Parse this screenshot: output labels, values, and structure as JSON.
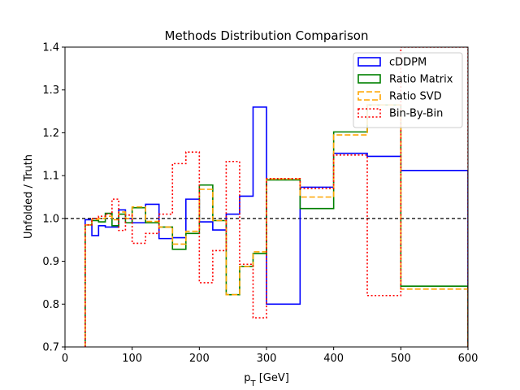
{
  "chart_data": {
    "type": "step",
    "title": "Methods Distribution Comparison",
    "xlabel": "p_T [GeV]",
    "ylabel": "Unfolded / Truth",
    "xlim": [
      0,
      600
    ],
    "ylim": [
      0.7,
      1.4
    ],
    "xticks": [
      0,
      100,
      200,
      300,
      400,
      500,
      600
    ],
    "yticks": [
      0.7,
      0.8,
      0.9,
      1.0,
      1.1,
      1.2,
      1.3,
      1.4
    ],
    "grid": false,
    "reference_line": {
      "y": 1.0,
      "style": "dashed",
      "color": "#000000"
    },
    "legend_position": "top-right",
    "bin_edges": [
      30,
      40,
      50,
      60,
      70,
      80,
      90,
      100,
      120,
      140,
      160,
      180,
      200,
      220,
      240,
      260,
      280,
      300,
      350,
      400,
      450,
      500,
      600
    ],
    "series": [
      {
        "name": "cDDPM",
        "color": "#0000ff",
        "style": "solid",
        "values": [
          0.997,
          0.96,
          0.983,
          0.98,
          0.98,
          1.02,
          1.0,
          0.99,
          1.033,
          0.953,
          0.955,
          1.045,
          0.992,
          0.973,
          1.01,
          1.052,
          1.26,
          0.8,
          1.073,
          1.152,
          1.145,
          1.112
        ]
      },
      {
        "name": "Ratio Matrix",
        "color": "#008000",
        "style": "solid",
        "values": [
          0.985,
          0.995,
          0.992,
          1.012,
          0.983,
          1.01,
          0.99,
          1.025,
          0.99,
          0.98,
          0.928,
          0.965,
          1.078,
          0.995,
          0.822,
          0.888,
          0.918,
          1.09,
          1.023,
          1.202,
          1.265,
          0.842
        ]
      },
      {
        "name": "Ratio SVD",
        "color": "#ffa500",
        "style": "dashed",
        "values": [
          0.985,
          0.998,
          1.0,
          1.005,
          0.997,
          1.015,
          1.0,
          1.027,
          0.993,
          0.98,
          0.94,
          0.97,
          1.068,
          0.995,
          0.822,
          0.888,
          0.922,
          1.092,
          1.05,
          1.195,
          1.265,
          0.835
        ]
      },
      {
        "name": "Bin-By-Bin",
        "color": "#ff0000",
        "style": "dotted",
        "values": [
          0.985,
          1.0,
          1.005,
          1.01,
          1.045,
          0.972,
          1.008,
          0.942,
          0.965,
          1.01,
          1.128,
          1.155,
          0.85,
          0.925,
          1.133,
          0.893,
          0.768,
          1.093,
          1.07,
          1.148,
          0.82,
          1.4
        ]
      }
    ]
  }
}
